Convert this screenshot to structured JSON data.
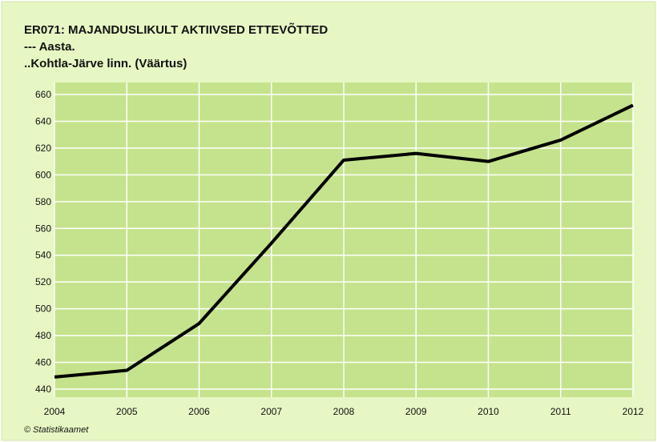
{
  "chart_data": {
    "type": "line",
    "title": "ER071: MAJANDUSLIKULT AKTIIVSED ETTEVÕTTED",
    "subtitle": "--- Aasta.",
    "subtitle2": "..Kohtla-Järve linn. (Väärtus)",
    "source": "© Statistikaamet",
    "x": [
      2004,
      2005,
      2006,
      2007,
      2008,
      2009,
      2010,
      2011,
      2012
    ],
    "xlim": [
      2004,
      2012
    ],
    "xticks": [
      2004,
      2005,
      2006,
      2007,
      2008,
      2009,
      2010,
      2011,
      2012
    ],
    "series": [
      {
        "color": "#000000",
        "values": [
          449,
          454,
          489,
          549,
          611,
          616,
          610,
          626,
          652
        ]
      }
    ],
    "ylim": [
      434,
      669
    ],
    "yticks": [
      440,
      460,
      480,
      500,
      520,
      540,
      560,
      580,
      600,
      620,
      640,
      660
    ],
    "grid": true
  }
}
